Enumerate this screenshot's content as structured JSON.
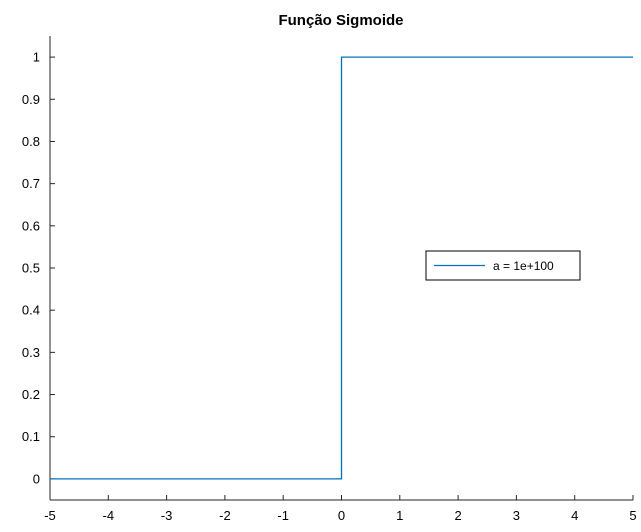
{
  "chart_data": {
    "type": "line",
    "title": "Função Sigmoide",
    "xlabel": "",
    "ylabel": "",
    "xlim": [
      -5,
      5
    ],
    "ylim": [
      -0.05,
      1.05
    ],
    "xticks": [
      -5,
      -4,
      -3,
      -2,
      -1,
      0,
      1,
      2,
      3,
      4,
      5
    ],
    "yticks": [
      0,
      0.1,
      0.2,
      0.3,
      0.4,
      0.5,
      0.6,
      0.7,
      0.8,
      0.9,
      1
    ],
    "xtick_labels": [
      "-5",
      "-4",
      "-3",
      "-2",
      "-1",
      "0",
      "1",
      "2",
      "3",
      "4",
      "5"
    ],
    "ytick_labels": [
      "0",
      "0.1",
      "0.2",
      "0.3",
      "0.4",
      "0.5",
      "0.6",
      "0.7",
      "0.8",
      "0.9",
      "1"
    ],
    "grid": false,
    "legend_position": "right",
    "series": [
      {
        "name": "a = 1e+100",
        "color": "#0072bd",
        "x": [
          -5,
          0,
          0,
          5
        ],
        "y": [
          0,
          0,
          1,
          1
        ]
      }
    ]
  }
}
